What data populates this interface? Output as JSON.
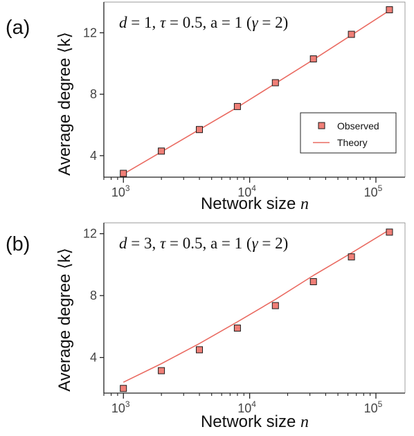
{
  "chart_data": [
    {
      "type": "scatter",
      "panel_label": "(a)",
      "annotation": "d = 1, τ = 0.5, a = 1 (γ = 2)",
      "xlabel": "Network size n",
      "ylabel": "Average degree ⟨k⟩",
      "x_scale": "log",
      "xlim": [
        700,
        170000
      ],
      "ylim": [
        2.6,
        14.0
      ],
      "x_ticks": [
        1000,
        10000,
        100000
      ],
      "x_tick_labels": [
        {
          "base": "10",
          "exp": "3"
        },
        {
          "base": "10",
          "exp": "4"
        },
        {
          "base": "10",
          "exp": "5"
        }
      ],
      "y_ticks": [
        4,
        8,
        12
      ],
      "y_tick_labels": [
        "4",
        "8",
        "12"
      ],
      "legend": {
        "position": "bottom-right",
        "entries": [
          "Observed",
          "Theory"
        ]
      },
      "grid": false,
      "series": [
        {
          "name": "Observed",
          "kind": "markers",
          "x": [
            1000,
            2000,
            4000,
            8000,
            16000,
            32000,
            64000,
            128000
          ],
          "y": [
            2.85,
            4.3,
            5.7,
            7.2,
            8.75,
            10.3,
            11.9,
            13.5
          ]
        },
        {
          "name": "Theory",
          "kind": "line",
          "x": [
            1000,
            2000,
            4000,
            8000,
            16000,
            32000,
            64000,
            128000
          ],
          "y": [
            2.8,
            4.25,
            5.7,
            7.15,
            8.7,
            10.25,
            11.85,
            13.45
          ]
        }
      ]
    },
    {
      "type": "scatter",
      "panel_label": "(b)",
      "annotation": "d = 3, τ = 0.5, a = 1 (γ = 2)",
      "xlabel": "Network size n",
      "ylabel": "Average degree ⟨k⟩",
      "x_scale": "log",
      "xlim": [
        700,
        170000
      ],
      "ylim": [
        1.7,
        12.7
      ],
      "x_ticks": [
        1000,
        10000,
        100000
      ],
      "x_tick_labels": [
        {
          "base": "10",
          "exp": "3"
        },
        {
          "base": "10",
          "exp": "4"
        },
        {
          "base": "10",
          "exp": "5"
        }
      ],
      "y_ticks": [
        4,
        8,
        12
      ],
      "y_tick_labels": [
        "4",
        "8",
        "12"
      ],
      "grid": false,
      "series": [
        {
          "name": "Observed",
          "kind": "markers",
          "x": [
            1000,
            2000,
            4000,
            8000,
            16000,
            32000,
            64000,
            128000
          ],
          "y": [
            2.0,
            3.15,
            4.5,
            5.9,
            7.35,
            8.9,
            10.5,
            12.1
          ]
        },
        {
          "name": "Theory",
          "kind": "line",
          "x": [
            1000,
            2000,
            4000,
            8000,
            16000,
            32000,
            64000,
            128000
          ],
          "y": [
            2.4,
            3.6,
            4.9,
            6.3,
            7.75,
            9.3,
            10.75,
            12.25
          ]
        }
      ]
    }
  ],
  "colors": {
    "marker_fill": "#f07f77",
    "marker_stroke": "#1a1a1a",
    "theory_line": "#ea6b62",
    "axis": "#222222"
  }
}
